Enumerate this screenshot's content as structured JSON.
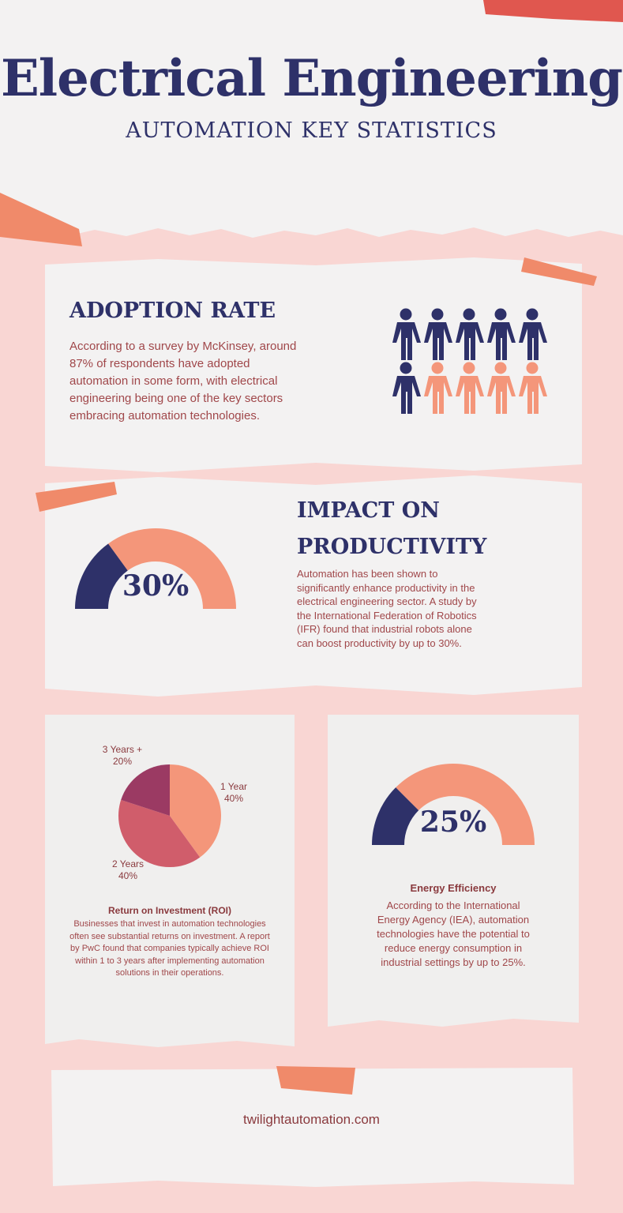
{
  "header": {
    "title": "Electrical Engineering",
    "subtitle": "AUTOMATION KEY STATISTICS"
  },
  "adoption": {
    "heading": "ADOPTION RATE",
    "text": "According to a survey by McKinsey, around 87% of respondents have adopted automation in some form, with electrical engineering being one of the key sectors embracing automation technologies."
  },
  "productivity": {
    "heading": "IMPACT ON PRODUCTIVITY",
    "text": "Automation has been shown to significantly enhance productivity in the electrical engineering sector. A study by the International Federation of Robotics (IFR) found that industrial robots alone can boost productivity by up to 30%."
  },
  "roi": {
    "heading": "Return on Investment (ROI)",
    "text": "Businesses that invest in automation technologies often see substantial returns on investment. A report by PwC found that companies typically achieve ROI within 1 to 3 years after implementing automation solutions in their operations."
  },
  "energy": {
    "heading": "Energy Efficiency",
    "text": "According to the International Energy Agency (IEA), automation technologies have the potential to reduce energy consumption in industrial settings by up to 25%."
  },
  "footer": {
    "url": "twilightautomation.com"
  },
  "chart_data": [
    {
      "type": "pie",
      "categories": [
        "1 Year",
        "2 Years",
        "3 Years +"
      ],
      "values": [
        40,
        40,
        20
      ],
      "value_labels": [
        "40%",
        "40%",
        "20%"
      ],
      "colors": [
        "#f4967a",
        "#d05d6b",
        "#9b3a63"
      ]
    },
    {
      "type": "gauge",
      "values": [
        30
      ],
      "value_labels": [
        "30%"
      ],
      "ylim": [
        0,
        100
      ],
      "colors": [
        "#2e3169",
        "#f4967a"
      ]
    },
    {
      "type": "gauge",
      "values": [
        25
      ],
      "value_labels": [
        "25%"
      ],
      "ylim": [
        0,
        100
      ],
      "colors": [
        "#2e3169",
        "#f4967a"
      ]
    }
  ]
}
